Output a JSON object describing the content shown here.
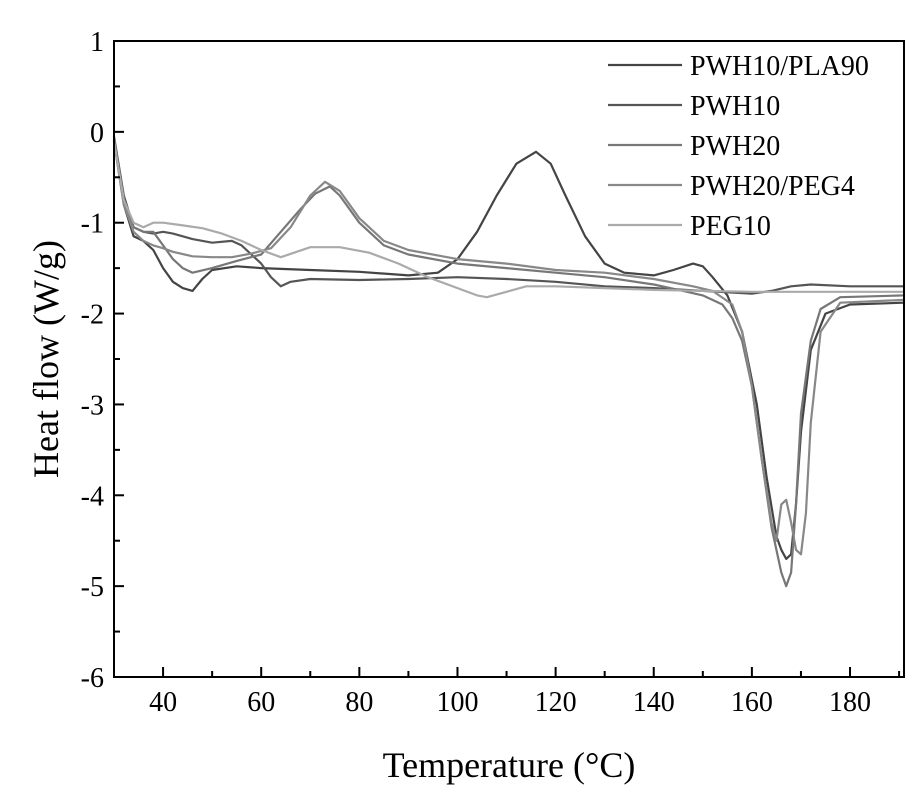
{
  "chart_data": {
    "type": "line",
    "title": "",
    "xlabel": "Temperature (°C)",
    "ylabel": "Heat flow (W/g)",
    "xlim": [
      30,
      191
    ],
    "ylim": [
      -6,
      1
    ],
    "x_ticks": [
      40,
      60,
      80,
      100,
      120,
      140,
      160,
      180
    ],
    "y_ticks": [
      1,
      0,
      -1,
      -2,
      -3,
      -4,
      -5,
      -6
    ],
    "x_tick_labels": [
      "40",
      "60",
      "80",
      "100",
      "120",
      "140",
      "160",
      "180"
    ],
    "y_tick_labels": [
      "1",
      "0",
      "-1",
      "-2",
      "-3",
      "-4",
      "-5",
      "-6"
    ],
    "grid": false,
    "legend_position": "top-right",
    "series": [
      {
        "name": "PWH10/PLA90",
        "color": "#444444",
        "points": [
          [
            30,
            -0.1
          ],
          [
            32,
            -0.8
          ],
          [
            34,
            -1.15
          ],
          [
            36,
            -1.2
          ],
          [
            38,
            -1.3
          ],
          [
            40,
            -1.5
          ],
          [
            42,
            -1.65
          ],
          [
            44,
            -1.72
          ],
          [
            46,
            -1.75
          ],
          [
            48,
            -1.62
          ],
          [
            50,
            -1.52
          ],
          [
            55,
            -1.48
          ],
          [
            60,
            -1.5
          ],
          [
            70,
            -1.52
          ],
          [
            80,
            -1.54
          ],
          [
            90,
            -1.58
          ],
          [
            96,
            -1.55
          ],
          [
            100,
            -1.4
          ],
          [
            104,
            -1.1
          ],
          [
            108,
            -0.7
          ],
          [
            112,
            -0.35
          ],
          [
            116,
            -0.22
          ],
          [
            119,
            -0.35
          ],
          [
            122,
            -0.7
          ],
          [
            126,
            -1.15
          ],
          [
            130,
            -1.45
          ],
          [
            134,
            -1.55
          ],
          [
            140,
            -1.58
          ],
          [
            144,
            -1.52
          ],
          [
            148,
            -1.45
          ],
          [
            150,
            -1.48
          ],
          [
            152,
            -1.6
          ],
          [
            155,
            -1.8
          ],
          [
            158,
            -2.2
          ],
          [
            161,
            -3.0
          ],
          [
            163,
            -3.8
          ],
          [
            165,
            -4.45
          ],
          [
            166,
            -4.6
          ],
          [
            167,
            -4.7
          ],
          [
            168,
            -4.65
          ],
          [
            169,
            -4.1
          ],
          [
            170,
            -3.3
          ],
          [
            172,
            -2.4
          ],
          [
            175,
            -2.0
          ],
          [
            180,
            -1.9
          ],
          [
            191,
            -1.88
          ]
        ]
      },
      {
        "name": "PWH10",
        "color": "#555555",
        "points": [
          [
            30,
            -0.05
          ],
          [
            32,
            -0.7
          ],
          [
            34,
            -1.05
          ],
          [
            36,
            -1.1
          ],
          [
            38,
            -1.12
          ],
          [
            40,
            -1.1
          ],
          [
            42,
            -1.12
          ],
          [
            44,
            -1.15
          ],
          [
            46,
            -1.18
          ],
          [
            50,
            -1.22
          ],
          [
            54,
            -1.2
          ],
          [
            56,
            -1.25
          ],
          [
            58,
            -1.35
          ],
          [
            60,
            -1.45
          ],
          [
            62,
            -1.6
          ],
          [
            64,
            -1.7
          ],
          [
            66,
            -1.65
          ],
          [
            70,
            -1.62
          ],
          [
            80,
            -1.63
          ],
          [
            90,
            -1.62
          ],
          [
            100,
            -1.6
          ],
          [
            110,
            -1.62
          ],
          [
            120,
            -1.65
          ],
          [
            130,
            -1.7
          ],
          [
            140,
            -1.72
          ],
          [
            150,
            -1.75
          ],
          [
            160,
            -1.78
          ],
          [
            164,
            -1.75
          ],
          [
            168,
            -1.7
          ],
          [
            172,
            -1.68
          ],
          [
            180,
            -1.7
          ],
          [
            191,
            -1.7
          ]
        ]
      },
      {
        "name": "PWH20",
        "color": "#777777",
        "points": [
          [
            30,
            -0.1
          ],
          [
            32,
            -0.75
          ],
          [
            34,
            -1.05
          ],
          [
            36,
            -1.1
          ],
          [
            38,
            -1.1
          ],
          [
            40,
            -1.25
          ],
          [
            42,
            -1.4
          ],
          [
            44,
            -1.5
          ],
          [
            46,
            -1.55
          ],
          [
            50,
            -1.5
          ],
          [
            55,
            -1.42
          ],
          [
            60,
            -1.35
          ],
          [
            64,
            -1.1
          ],
          [
            68,
            -0.85
          ],
          [
            71,
            -0.68
          ],
          [
            74,
            -0.6
          ],
          [
            76,
            -0.7
          ],
          [
            80,
            -1.0
          ],
          [
            85,
            -1.25
          ],
          [
            90,
            -1.35
          ],
          [
            100,
            -1.45
          ],
          [
            110,
            -1.5
          ],
          [
            120,
            -1.55
          ],
          [
            130,
            -1.6
          ],
          [
            140,
            -1.68
          ],
          [
            146,
            -1.75
          ],
          [
            150,
            -1.8
          ],
          [
            154,
            -1.9
          ],
          [
            156,
            -2.05
          ],
          [
            158,
            -2.3
          ],
          [
            160,
            -2.8
          ],
          [
            162,
            -3.6
          ],
          [
            164,
            -4.35
          ],
          [
            166,
            -4.85
          ],
          [
            167,
            -5.0
          ],
          [
            168,
            -4.85
          ],
          [
            169,
            -4.1
          ],
          [
            170,
            -3.1
          ],
          [
            172,
            -2.3
          ],
          [
            174,
            -1.95
          ],
          [
            178,
            -1.82
          ],
          [
            191,
            -1.8
          ]
        ]
      },
      {
        "name": "PWH20/PEG4",
        "color": "#888888",
        "points": [
          [
            30,
            -0.1
          ],
          [
            32,
            -0.8
          ],
          [
            34,
            -1.1
          ],
          [
            36,
            -1.2
          ],
          [
            38,
            -1.25
          ],
          [
            40,
            -1.28
          ],
          [
            42,
            -1.32
          ],
          [
            46,
            -1.37
          ],
          [
            50,
            -1.38
          ],
          [
            54,
            -1.38
          ],
          [
            58,
            -1.34
          ],
          [
            62,
            -1.28
          ],
          [
            66,
            -1.05
          ],
          [
            70,
            -0.7
          ],
          [
            73,
            -0.55
          ],
          [
            76,
            -0.65
          ],
          [
            80,
            -0.95
          ],
          [
            85,
            -1.2
          ],
          [
            90,
            -1.3
          ],
          [
            100,
            -1.4
          ],
          [
            110,
            -1.45
          ],
          [
            120,
            -1.52
          ],
          [
            130,
            -1.55
          ],
          [
            140,
            -1.62
          ],
          [
            148,
            -1.7
          ],
          [
            152,
            -1.75
          ],
          [
            156,
            -1.9
          ],
          [
            158,
            -2.2
          ],
          [
            160,
            -2.8
          ],
          [
            162,
            -3.6
          ],
          [
            164,
            -4.3
          ],
          [
            165,
            -4.5
          ],
          [
            166,
            -4.1
          ],
          [
            167,
            -4.05
          ],
          [
            168,
            -4.3
          ],
          [
            169,
            -4.6
          ],
          [
            170,
            -4.65
          ],
          [
            171,
            -4.2
          ],
          [
            172,
            -3.2
          ],
          [
            174,
            -2.2
          ],
          [
            178,
            -1.88
          ],
          [
            191,
            -1.85
          ]
        ]
      },
      {
        "name": "PEG10",
        "color": "#aaaaaa",
        "points": [
          [
            30,
            -0.1
          ],
          [
            32,
            -0.75
          ],
          [
            34,
            -1.0
          ],
          [
            36,
            -1.05
          ],
          [
            38,
            -1.0
          ],
          [
            40,
            -1.0
          ],
          [
            44,
            -1.03
          ],
          [
            48,
            -1.06
          ],
          [
            52,
            -1.12
          ],
          [
            56,
            -1.2
          ],
          [
            60,
            -1.3
          ],
          [
            64,
            -1.38
          ],
          [
            70,
            -1.27
          ],
          [
            76,
            -1.27
          ],
          [
            82,
            -1.33
          ],
          [
            88,
            -1.45
          ],
          [
            94,
            -1.6
          ],
          [
            100,
            -1.72
          ],
          [
            104,
            -1.8
          ],
          [
            106,
            -1.82
          ],
          [
            110,
            -1.76
          ],
          [
            114,
            -1.7
          ],
          [
            120,
            -1.7
          ],
          [
            130,
            -1.72
          ],
          [
            140,
            -1.74
          ],
          [
            150,
            -1.75
          ],
          [
            160,
            -1.76
          ],
          [
            170,
            -1.76
          ],
          [
            180,
            -1.76
          ],
          [
            191,
            -1.76
          ]
        ]
      }
    ]
  }
}
